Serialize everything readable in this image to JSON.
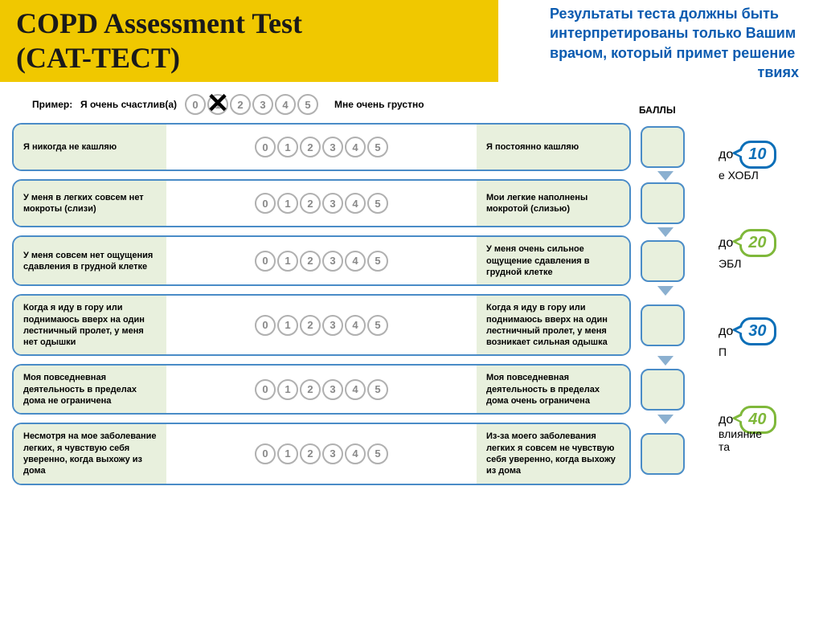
{
  "header": {
    "title_line1": "COPD Assessment Test",
    "title_line2": "(CAT-TECT)",
    "bg_color": "#f0c800",
    "text_color": "#1a1a1a"
  },
  "side_note": {
    "text": "Результаты теста должны быть интерпретированы только Вашим врачом, который примет решение",
    "color": "#0b5bb0",
    "tail": "твиях"
  },
  "example": {
    "label": "Пример:",
    "left": "Я очень счастлив(а)",
    "right": "Мне очень грустно",
    "marked_index": 1,
    "values": [
      "0",
      "1",
      "2",
      "3",
      "4",
      "5"
    ]
  },
  "points_header": "БАЛЛЫ",
  "scale_values": [
    "0",
    "1",
    "2",
    "3",
    "4",
    "5"
  ],
  "colors": {
    "row_border": "#4a8cc7",
    "row_bg": "#e8f0dd",
    "circle_border": "#b0b0b0",
    "circle_text": "#888888",
    "arrow": "#8bb0d0"
  },
  "questions": [
    {
      "left": "Я никогда не кашляю",
      "right": "Я постоянно кашляю"
    },
    {
      "left": "У меня в легких совсем нет мокроты (слизи)",
      "right": "Мои легкие наполнены мокротой (слизью)"
    },
    {
      "left": "У меня совсем нет ощущения сдавления в грудной клетке",
      "right": "У меня очень сильное ощущение сдавления в грудной клетке"
    },
    {
      "left": "Когда я иду в гору или поднимаюсь вверх на один лестничный пролет, у меня нет одышки",
      "right": "Когда я иду в гору или поднимаюсь вверх на один лестничный пролет, у меня возникает сильная одышка"
    },
    {
      "left": "Моя повседневная деятельность в пределах дома не ограничена",
      "right": "Моя повседневная деятельность в пределах дома очень ограничена"
    },
    {
      "left": "Несмотря на мое заболевание легких, я чувствую себя уверенно, когда выхожу из дома",
      "right": "Из-за моего заболевания легких я совсем не чувствую себя уверенно, когда выхожу из дома"
    }
  ],
  "badges": [
    {
      "pre": "до",
      "value": "10",
      "color": "#0b6fb8",
      "caption": "е ХОБЛ"
    },
    {
      "pre": "до",
      "value": "20",
      "color": "#7fb83a",
      "caption": "ЭБЛ"
    },
    {
      "pre": "до",
      "value": "30",
      "color": "#0b6fb8",
      "caption": "П"
    },
    {
      "pre": "до",
      "value": "40",
      "color": "#7fb83a",
      "caption": "влияние\nта"
    }
  ]
}
